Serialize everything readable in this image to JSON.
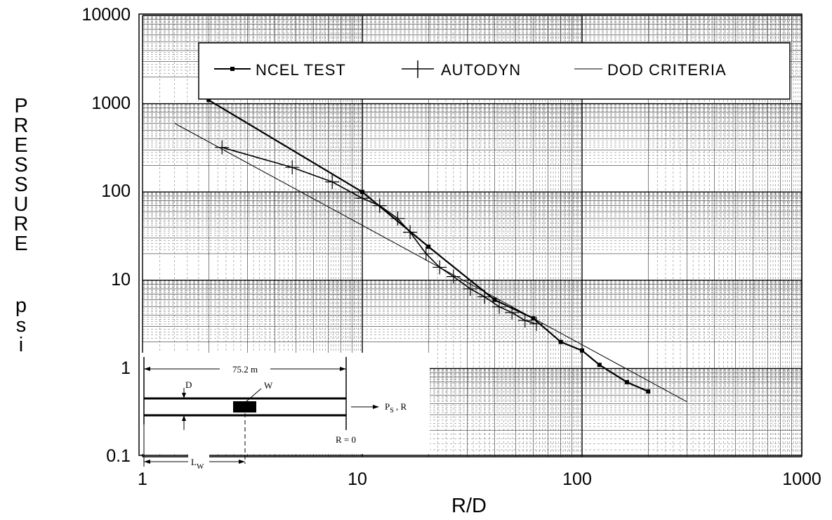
{
  "chart_data": {
    "type": "line",
    "title": "",
    "xlabel": "R/D",
    "ylabel": "PRESSURE   psi",
    "x_scale": "log",
    "y_scale": "log",
    "xlim": [
      1,
      1000
    ],
    "ylim": [
      0.1,
      10000
    ],
    "x_ticks": [
      "1",
      "10",
      "100",
      "1000"
    ],
    "y_ticks": [
      "10000",
      "1000",
      "100",
      "10",
      "1",
      "0.1"
    ],
    "grid": true,
    "legend_position": "top",
    "series": [
      {
        "name": "NCEL TEST",
        "marker": "square",
        "x": [
          2,
          10,
          20,
          40,
          60,
          80,
          100,
          120,
          160,
          200
        ],
        "y": [
          1100,
          100,
          24,
          6,
          3.7,
          2,
          1.6,
          1.1,
          0.7,
          0.55
        ]
      },
      {
        "name": "AUTODYN",
        "marker": "plus",
        "x": [
          2.3,
          4.8,
          7.3,
          10,
          12,
          14.5,
          16.5,
          19.5,
          22.5,
          26,
          31,
          36,
          42,
          48,
          55,
          62
        ],
        "y": [
          320,
          190,
          130,
          85,
          70,
          50,
          35,
          20,
          14,
          11,
          8,
          6.5,
          5,
          4.3,
          3.5,
          3.2
        ]
      },
      {
        "name": "DOD CRITERIA",
        "marker": "none",
        "x": [
          1.4,
          300
        ],
        "y": [
          600,
          0.42
        ]
      }
    ]
  },
  "inset": {
    "length_label": "75.2 m",
    "d_label": "D",
    "w_label": "W",
    "lw_label": "L",
    "lw_sub": "W",
    "ps_label": "P",
    "ps_sub": "S",
    "ps_suffix": " ,  R",
    "r0_label": "R = 0"
  }
}
